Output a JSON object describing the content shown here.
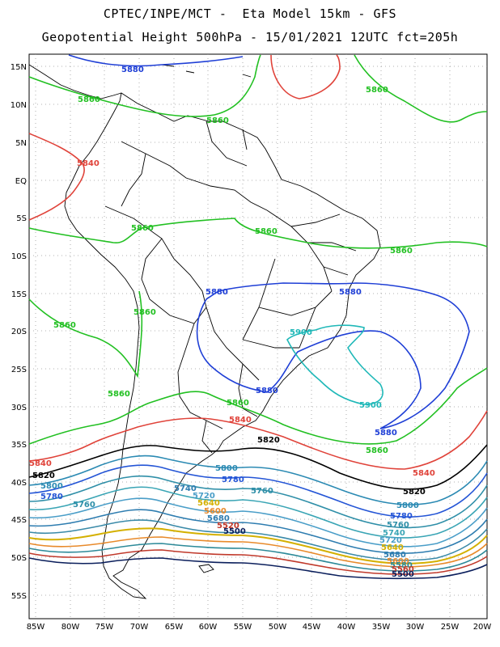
{
  "header": {
    "line1": "CPTEC/INPE/MCT -  Eta Model 15km - GFS",
    "line2": "Geopotential Height 500hPa - 15/01/2021 12UTC fct=205h"
  },
  "axes": {
    "lat_labels": [
      "15N",
      "10N",
      "5N",
      "EQ",
      "5S",
      "10S",
      "15S",
      "20S",
      "25S",
      "30S",
      "35S",
      "40S",
      "45S",
      "50S",
      "55S"
    ],
    "lon_labels": [
      "85W",
      "80W",
      "75W",
      "70W",
      "65W",
      "60W",
      "55W",
      "50W",
      "45W",
      "40W",
      "35W",
      "30W",
      "25W",
      "20W"
    ]
  },
  "colors": {
    "c5500": "#0b1f5c",
    "c5520": "#c0392b",
    "c5540": "#e88a2b",
    "c5560": "#d4b000",
    "c5580": "#2d8a99",
    "c5600": "#4a7fb5",
    "c5640": "#2d6fd6",
    "c5680": "#3a8aa8",
    "c5700": "#2e7db0",
    "c5720": "#4a9ec8",
    "c5740": "#3aa5b5",
    "c5760": "#2f8fa8",
    "c5780": "#2455d6",
    "c5800": "#2b8ab3",
    "c5820": "#000000",
    "c5840": "#e0433a",
    "c5860": "#22c022",
    "c5880": "#1f3fd6",
    "c5900": "#1fb8b8",
    "coast": "#000000",
    "grid": "#999999"
  },
  "contours": {
    "5880": "5880",
    "5860": "5860",
    "5840": "5840",
    "5820": "5820",
    "5800": "5800",
    "5780": "5780",
    "5760": "5760",
    "5740": "5740",
    "5720": "5720",
    "5900": "5900",
    "5680": "5680",
    "5640": "5640",
    "5600": "5600",
    "5580": "5580",
    "5560": "5560",
    "5540": "5540",
    "5520": "5520",
    "5500": "5500"
  }
}
